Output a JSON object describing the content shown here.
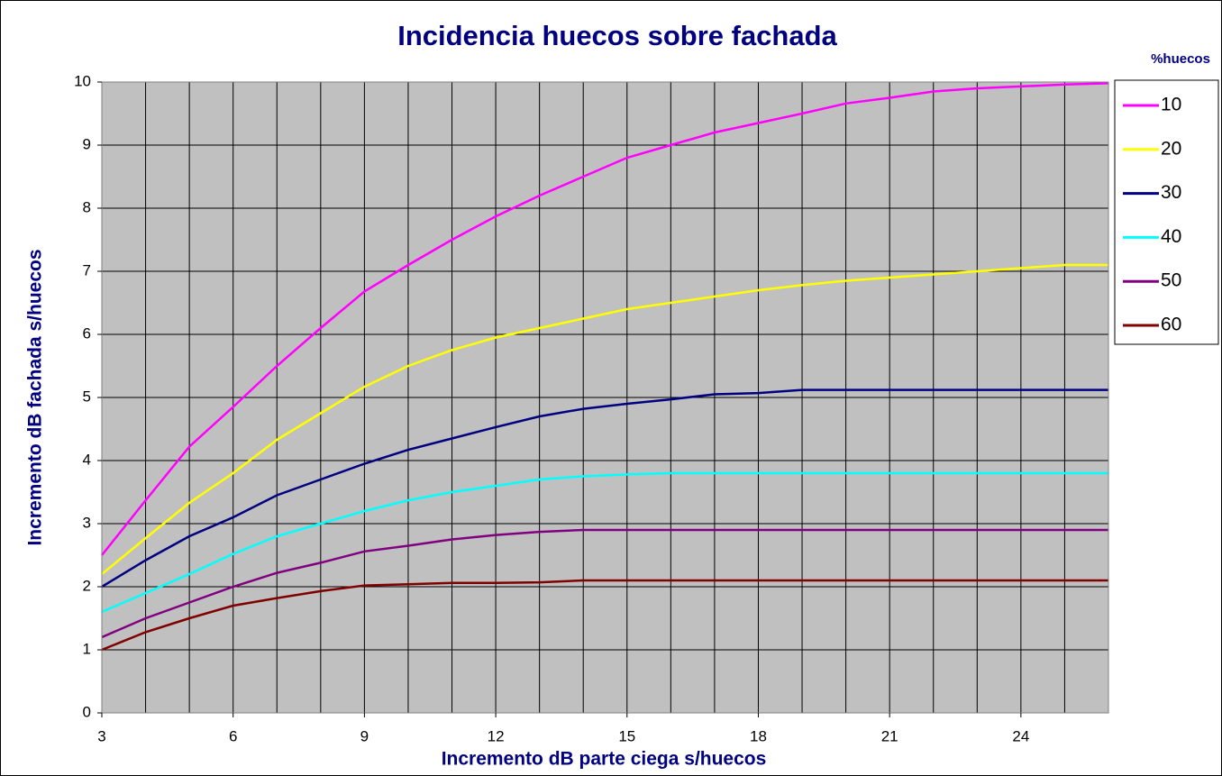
{
  "chart_data": {
    "type": "line",
    "title": "Incidencia huecos sobre fachada",
    "x_label": "Incremento dB parte ciega s/huecos",
    "y_label": "Incremento dB fachada s/huecos",
    "legend_title": "%huecos",
    "legend_position": "right",
    "grid": true,
    "x": [
      3,
      4,
      5,
      6,
      7,
      8,
      9,
      10,
      11,
      12,
      13,
      14,
      15,
      16,
      17,
      18,
      19,
      20,
      21,
      22,
      23,
      24,
      25,
      26
    ],
    "xlim": [
      3,
      26
    ],
    "xticks": [
      3,
      6,
      9,
      12,
      15,
      18,
      21,
      24
    ],
    "ylim": [
      0,
      10
    ],
    "yticks": [
      0,
      1,
      2,
      3,
      4,
      5,
      6,
      7,
      8,
      9,
      10
    ],
    "series": [
      {
        "name": "10",
        "color": "#ff00ff",
        "values": [
          2.5,
          3.37,
          4.22,
          4.85,
          5.5,
          6.1,
          6.68,
          7.1,
          7.5,
          7.87,
          8.2,
          8.5,
          8.8,
          9.0,
          9.2,
          9.35,
          9.5,
          9.66,
          9.75,
          9.85,
          9.9,
          9.93,
          9.96,
          9.98
        ]
      },
      {
        "name": "20",
        "color": "#ffff00",
        "values": [
          2.2,
          2.77,
          3.33,
          3.8,
          4.33,
          4.75,
          5.17,
          5.5,
          5.75,
          5.95,
          6.1,
          6.25,
          6.4,
          6.5,
          6.6,
          6.7,
          6.78,
          6.85,
          6.9,
          6.95,
          7.0,
          7.05,
          7.1,
          7.1
        ]
      },
      {
        "name": "30",
        "color": "#000080",
        "values": [
          2.0,
          2.42,
          2.8,
          3.1,
          3.45,
          3.7,
          3.95,
          4.17,
          4.35,
          4.53,
          4.7,
          4.82,
          4.9,
          4.97,
          5.05,
          5.07,
          5.12,
          5.12,
          5.12,
          5.12,
          5.12,
          5.12,
          5.12,
          5.12
        ]
      },
      {
        "name": "40",
        "color": "#00ffff",
        "values": [
          1.6,
          1.9,
          2.2,
          2.52,
          2.8,
          3.0,
          3.2,
          3.37,
          3.5,
          3.6,
          3.7,
          3.75,
          3.78,
          3.8,
          3.8,
          3.8,
          3.8,
          3.8,
          3.8,
          3.8,
          3.8,
          3.8,
          3.8,
          3.8
        ]
      },
      {
        "name": "50",
        "color": "#800080",
        "values": [
          1.2,
          1.5,
          1.75,
          2.0,
          2.22,
          2.38,
          2.56,
          2.65,
          2.75,
          2.82,
          2.87,
          2.9,
          2.9,
          2.9,
          2.9,
          2.9,
          2.9,
          2.9,
          2.9,
          2.9,
          2.9,
          2.9,
          2.9,
          2.9
        ]
      },
      {
        "name": "60",
        "color": "#800000",
        "values": [
          1.0,
          1.28,
          1.5,
          1.7,
          1.82,
          1.93,
          2.02,
          2.04,
          2.06,
          2.06,
          2.07,
          2.1,
          2.1,
          2.1,
          2.1,
          2.1,
          2.1,
          2.1,
          2.1,
          2.1,
          2.1,
          2.1,
          2.1,
          2.1
        ]
      }
    ]
  }
}
